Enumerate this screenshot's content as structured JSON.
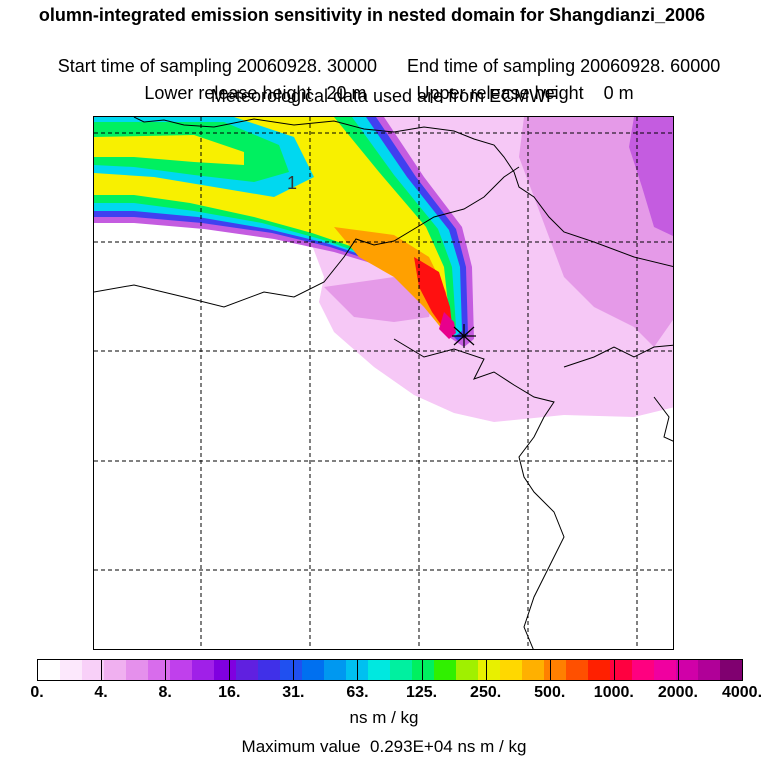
{
  "header": {
    "title": "olumn-integrated emission sensitivity in nested domain for Shangdianzi_2006",
    "start_time": "Start time of sampling 20060928. 30000",
    "end_time": "End time of sampling 20060928. 60000",
    "lower_release": "Lower release height   20 m",
    "upper_release": "Upper release height    0 m",
    "meteo": "Meteorological data used are from ECMWF"
  },
  "map": {
    "marker_label": "1",
    "plume_colors": {
      "outer_pink": "#f6c8f6",
      "light_violet": "#e59ae8",
      "violet": "#c45ce0",
      "blue": "#4040f0",
      "cyan": "#00d8f0",
      "green": "#00f060",
      "yellow": "#f8f000",
      "orange": "#ffa000",
      "red": "#ff1010",
      "magenta": "#e8008c"
    }
  },
  "legend": {
    "colors": [
      "#ffffff",
      "#fce8fc",
      "#f8d0f8",
      "#f0b0f0",
      "#e590ec",
      "#d86cec",
      "#c040ec",
      "#a020e8",
      "#8000e0",
      "#6020e0",
      "#4030e8",
      "#2050f0",
      "#0070f0",
      "#0098f0",
      "#00c0f0",
      "#00e8e0",
      "#00f0a0",
      "#00f060",
      "#30f000",
      "#a0f000",
      "#e8f000",
      "#ffd800",
      "#ffb000",
      "#ff8000",
      "#ff5000",
      "#ff2000",
      "#ff0040",
      "#ff0080",
      "#f000a0",
      "#d000a8",
      "#b00098",
      "#800070"
    ],
    "labels": [
      "0.",
      "4.",
      "8.",
      "16.",
      "31.",
      "63.",
      "125.",
      "250.",
      "500.",
      "1000.",
      "2000.",
      "4000."
    ],
    "units": "ns m / kg"
  },
  "footer": {
    "max_value": "Maximum value  0.293E+04 ns m / kg"
  }
}
